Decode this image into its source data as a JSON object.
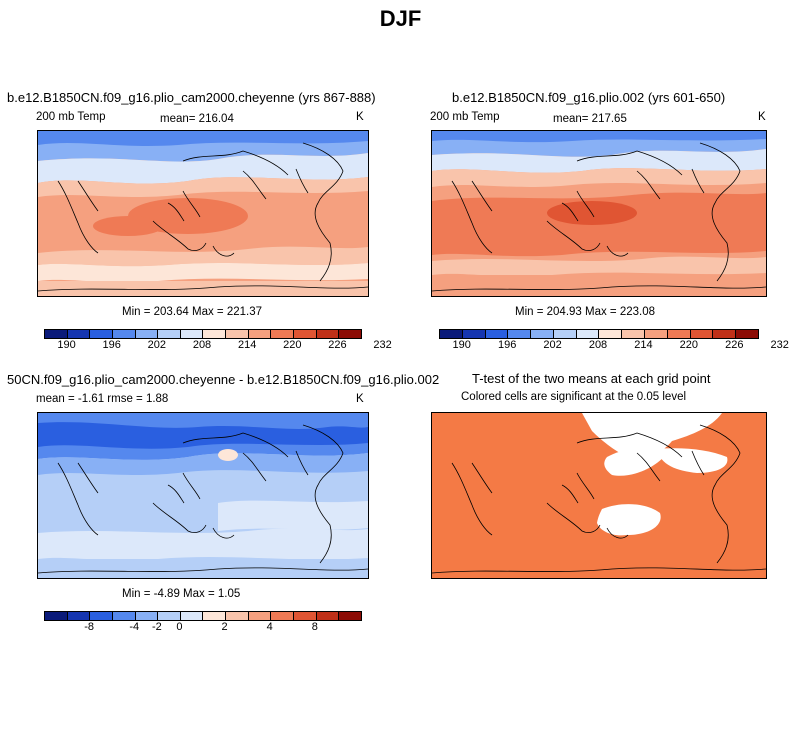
{
  "title": "DJF",
  "panels": [
    {
      "title": "b.e12.B1850CN.f09_g16.plio_cam2000.cheyenne (yrs 867-888)",
      "left_label": "200 mb Temp",
      "center_label": "mean= 216.04",
      "right_label": "K",
      "stats": "Min = 203.64 Max = 221.37",
      "ticks": [
        "190",
        "196",
        "202",
        "208",
        "214",
        "220",
        "226",
        "232"
      ]
    },
    {
      "title": "b.e12.B1850CN.f09_g16.plio.002 (yrs 601-650)",
      "left_label": "200 mb Temp",
      "center_label": "mean= 217.65",
      "right_label": "K",
      "stats": "Min = 204.93 Max = 223.08",
      "ticks": [
        "190",
        "196",
        "202",
        "208",
        "214",
        "220",
        "226",
        "232"
      ]
    },
    {
      "title": "50CN.f09_g16.plio_cam2000.cheyenne - b.e12.B1850CN.f09_g16.plio.002",
      "left_label": "mean =   -1.61    rmse =    1.88",
      "right_label": "K",
      "stats": "Min =  -4.89 Max =    1.05",
      "ticks": [
        "-8",
        "-4",
        "-2",
        "0",
        "2",
        "4",
        "8"
      ]
    },
    {
      "title": "T-test of the two means at each grid point",
      "subtitle": "Colored cells are significant at the 0.05 level"
    }
  ],
  "colors": {
    "temp_scale": [
      "#0a1a7a",
      "#1535b0",
      "#2a5fe0",
      "#5588ee",
      "#88b0f5",
      "#b5cff7",
      "#dce8fa",
      "#fde6d8",
      "#f9c4ab",
      "#f5a07f",
      "#ef7a55",
      "#e05533",
      "#c03018",
      "#8c0c05"
    ],
    "diff_scale": [
      "#0a1a7a",
      "#1535b0",
      "#2a5fe0",
      "#5588ee",
      "#88b0f5",
      "#b5cff7",
      "#dce8fa",
      "#fde6d8",
      "#f9c4ab",
      "#f5a07f",
      "#ef7a55",
      "#e05533",
      "#c03018",
      "#8c0c05"
    ],
    "ttest_fill": "#f47a45"
  }
}
